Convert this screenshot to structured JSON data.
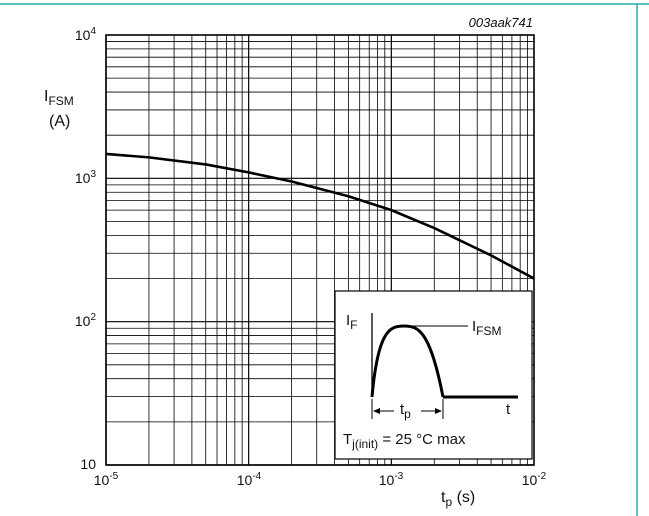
{
  "figure_code": "003aak741",
  "frame_color": "#2aa8a8",
  "chart_data": {
    "type": "line",
    "xscale": "log",
    "yscale": "log",
    "xlim": [
      1e-05,
      0.01
    ],
    "ylim": [
      10,
      10000
    ],
    "grid": true,
    "x_ticks": [
      {
        "base": "10",
        "exp": "-5"
      },
      {
        "base": "10",
        "exp": "-4"
      },
      {
        "base": "10",
        "exp": "-3"
      },
      {
        "base": "10",
        "exp": "-2"
      }
    ],
    "y_ticks": [
      {
        "base": "10",
        "exp": ""
      },
      {
        "base": "10",
        "exp": "2"
      },
      {
        "base": "10",
        "exp": "3"
      },
      {
        "base": "10",
        "exp": "4"
      }
    ],
    "xlabel": {
      "main": "t",
      "sub": "p",
      "unit": " (s)"
    },
    "ylabel": {
      "main": "I",
      "sub": "FSM",
      "unit": "(A)"
    },
    "series": [
      {
        "x": [
          1e-05,
          2e-05,
          5e-05,
          0.0001,
          0.0002,
          0.0005,
          0.001,
          0.002,
          0.005,
          0.01
        ],
        "y": [
          1480,
          1400,
          1250,
          1100,
          950,
          750,
          600,
          450,
          290,
          200
        ]
      }
    ],
    "inset": {
      "y_axis_label": {
        "main": "I",
        "sub": "F"
      },
      "peak_label": {
        "main": "I",
        "sub": "FSM"
      },
      "x_axis_label": "t",
      "pulse_label": {
        "main": "t",
        "sub": "p"
      },
      "condition": {
        "main": "T",
        "sub": "j(init)",
        "rest": " = 25 °C max"
      }
    }
  }
}
